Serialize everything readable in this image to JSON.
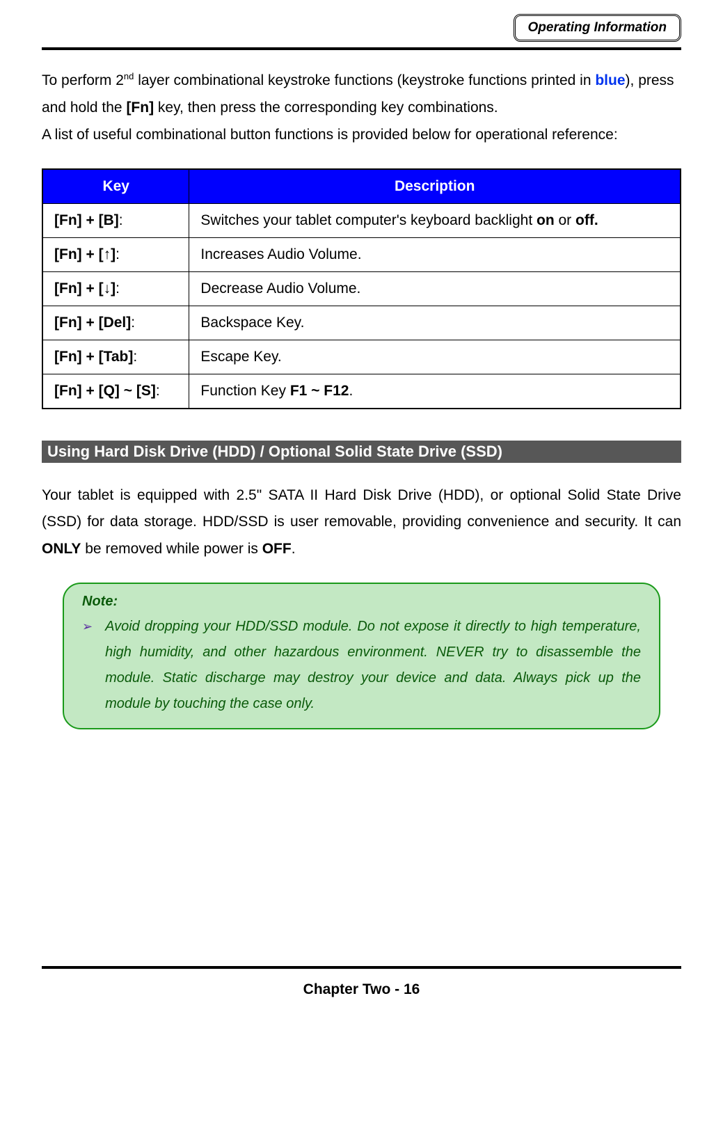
{
  "header": {
    "badge": "Operating Information"
  },
  "intro": {
    "part1_pre": "To perform 2",
    "part1_sup": "nd",
    "part1_mid": " layer combinational keystroke functions (keystroke functions printed in ",
    "part1_blue": "blue",
    "part1_post": "), press and hold the ",
    "part1_fn": "[Fn]",
    "part1_end": " key, then press the corresponding key combinations.",
    "part2": "A list of useful combinational button functions is provided below for operational reference:"
  },
  "table": {
    "headers": {
      "key": "Key",
      "desc": "Description"
    },
    "header_bg": "#0000fe",
    "header_color": "#ffffff",
    "rows": [
      {
        "key_bold": "[Fn] + [B]",
        "key_tail": ":",
        "desc_pre": "Switches your tablet computer's keyboard backlight ",
        "desc_b1": "on",
        "desc_mid": " or ",
        "desc_b2": "off."
      },
      {
        "key_bold": "[Fn] + [↑]",
        "key_tail": ":",
        "desc_plain": "Increases Audio Volume."
      },
      {
        "key_bold": "[Fn] + [↓]",
        "key_tail": ":",
        "desc_plain": "Decrease Audio Volume."
      },
      {
        "key_bold": "[Fn] + [Del]",
        "key_tail": ":",
        "desc_plain": "Backspace Key."
      },
      {
        "key_bold": "[Fn] + [Tab]",
        "key_tail": ":",
        "desc_plain": "Escape Key."
      },
      {
        "key_bold": "[Fn] + [Q] ~ [S]",
        "key_tail": ":",
        "desc_pre": "Function Key ",
        "desc_b1": "F1 ~ F12",
        "desc_mid": "."
      }
    ]
  },
  "section": {
    "title": " Using Hard Disk Drive (HDD) / Optional Solid State Drive (SSD)"
  },
  "hdd": {
    "p_pre": "Your tablet is equipped with 2.5\" SATA II Hard Disk Drive (HDD), or optional Solid State Drive (SSD) for data storage. HDD/SSD is user removable, providing convenience and security. It can ",
    "p_b1": "ONLY",
    "p_mid": " be removed while power is ",
    "p_b2": "OFF",
    "p_end": "."
  },
  "note": {
    "title": "Note:",
    "bullet": "➢",
    "text": "Avoid dropping your HDD/SSD module. Do not expose it directly to high temperature, high humidity, and other hazardous environment. NEVER try to disassemble the module. Static discharge may destroy your device and data. Always pick up the module by touching the case only.",
    "border_color": "#1a9a1a",
    "bg_color": "#c3e8c3",
    "text_color": "#0a5a0a"
  },
  "footer": {
    "text": "Chapter Two - 16"
  }
}
